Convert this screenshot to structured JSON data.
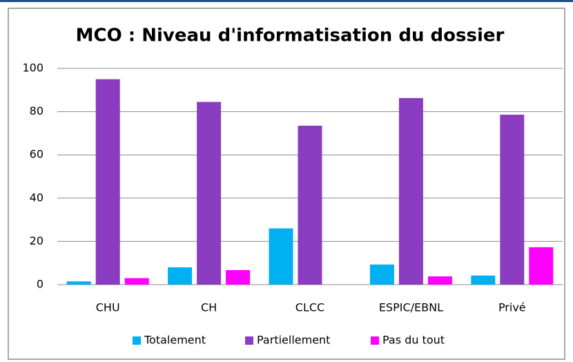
{
  "chart_data": {
    "type": "bar",
    "title": "MCO : Niveau d'informatisation du dossier",
    "categories": [
      "CHU",
      "CH",
      "CLCC",
      "ESPIC/EBNL",
      "Privé"
    ],
    "series": [
      {
        "name": "Totalement",
        "color": "#00b0f0",
        "values": [
          1.5,
          8,
          26,
          9.3,
          4.2
        ]
      },
      {
        "name": "Partiellement",
        "color": "#8b3dc1",
        "values": [
          95,
          84.5,
          73.5,
          86.3,
          78.6
        ]
      },
      {
        "name": "Pas du tout",
        "color": "#ff00ff",
        "values": [
          3,
          6.7,
          0,
          3.8,
          17.3
        ]
      }
    ],
    "ylim": [
      0,
      100
    ],
    "yticks": [
      0,
      20,
      40,
      60,
      80,
      100
    ],
    "grid": true,
    "legend": "bottom"
  }
}
